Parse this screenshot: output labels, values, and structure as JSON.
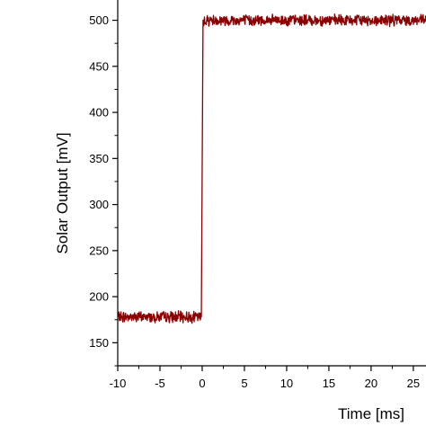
{
  "chart_data": {
    "type": "line",
    "title": "",
    "xlabel": "Time [ms]",
    "ylabel": "Solar Output [mV]",
    "xlim": [
      -10,
      26.5
    ],
    "ylim": [
      125,
      522
    ],
    "xticks": [
      -10,
      -5,
      0,
      5,
      10,
      15,
      20,
      25
    ],
    "xtick_labels": [
      "-10",
      "-5",
      "0",
      "5",
      "10",
      "15",
      "20",
      "25"
    ],
    "yticks": [
      150,
      200,
      250,
      300,
      350,
      400,
      450,
      500
    ],
    "ytick_labels": [
      "150",
      "200",
      "250",
      "300",
      "350",
      "400",
      "450",
      "500"
    ],
    "grid": false,
    "series": [
      {
        "color": "#8b0000",
        "x": [
          -10,
          -0.1,
          0,
          0.1,
          26.5
        ],
        "y": [
          178,
          178,
          340,
          500,
          500
        ],
        "noise_mv": 5
      }
    ]
  }
}
